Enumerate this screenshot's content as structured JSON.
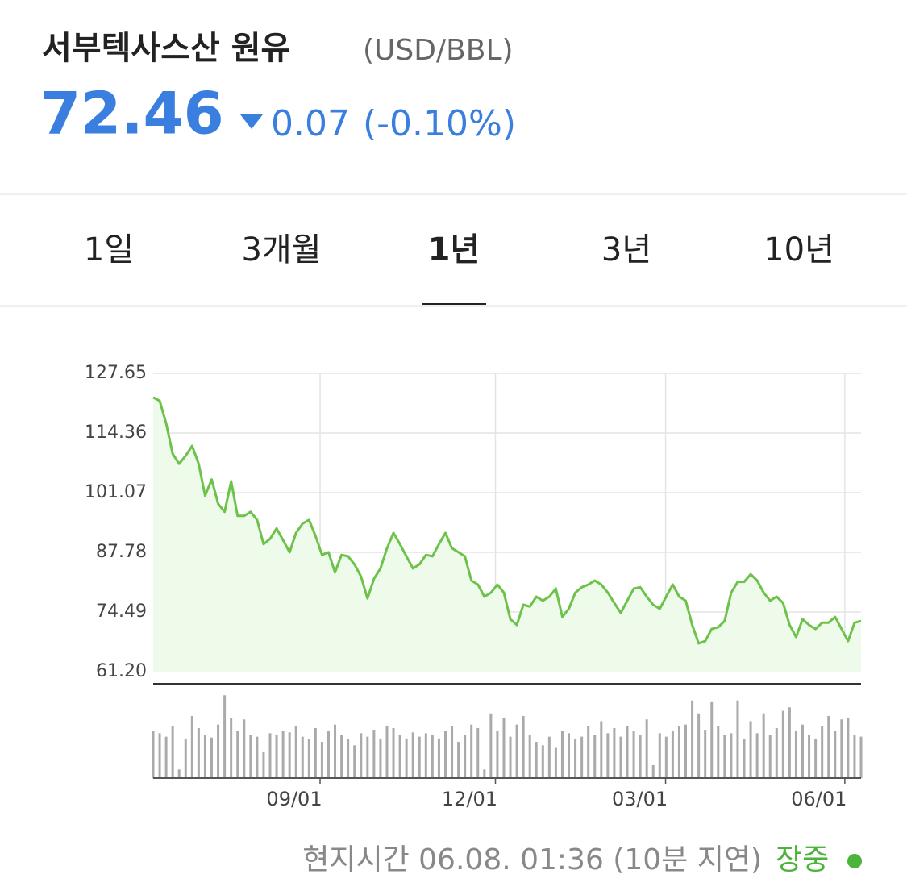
{
  "header": {
    "title": "서부텍사스산 원유",
    "unit": "(USD/BBL)",
    "price": "72.46",
    "change": "0.07",
    "change_pct": "(-0.10%)"
  },
  "tabs": {
    "items": [
      "1일",
      "3개월",
      "1년",
      "3년",
      "10년"
    ],
    "active": 2
  },
  "chart_data": {
    "type": "line",
    "color": "#6cc24a",
    "fill": "#effbea",
    "grid": true,
    "ylim": [
      61.2,
      127.65
    ],
    "yticks": [
      {
        "value": 61.2,
        "label": "61.20"
      },
      74.49,
      87.78,
      101.07,
      114.36,
      127.65
    ],
    "xlim": [
      0,
      109
    ],
    "xticks": [
      {
        "value": 25.7,
        "label": "09/01"
      },
      {
        "value": 52.7,
        "label": "12/01"
      },
      {
        "value": 78.9,
        "label": "03/01"
      },
      {
        "value": 106.5,
        "label": "06/01"
      }
    ],
    "series": [
      {
        "values": [
          122.3,
          121.5,
          116.5,
          109.7,
          107.5,
          109.3,
          111.5,
          107.5,
          100.4,
          104.0,
          98.6,
          96.8,
          103.6,
          95.9,
          95.9,
          96.8,
          95.0,
          89.6,
          90.8,
          93.1,
          90.5,
          87.8,
          92.1,
          94.2,
          95.0,
          91.4,
          87.2,
          87.8,
          83.3,
          87.2,
          86.9,
          85.1,
          82.4,
          77.5,
          81.9,
          84.2,
          88.7,
          92.1,
          89.6,
          86.9,
          84.2,
          85.1,
          87.2,
          86.9,
          89.6,
          92.1,
          88.7,
          87.8,
          86.9,
          81.5,
          80.6,
          77.9,
          78.8,
          80.6,
          78.8,
          72.9,
          71.6,
          76.1,
          75.7,
          77.9,
          77.0,
          77.9,
          79.7,
          73.4,
          75.2,
          78.8,
          80.0,
          80.6,
          81.5,
          80.6,
          78.8,
          76.5,
          74.3,
          77.0,
          79.7,
          80.0,
          77.9,
          76.1,
          75.2,
          77.9,
          80.6,
          77.9,
          77.0,
          71.6,
          67.5,
          68.0,
          70.7,
          71.1,
          72.5,
          78.8,
          81.2,
          81.2,
          82.9,
          81.5,
          78.8,
          77.0,
          77.9,
          76.5,
          71.6,
          68.9,
          72.9,
          71.6,
          70.7,
          72.1,
          72.1,
          73.4,
          70.7,
          68.0,
          72.1,
          72.5
        ]
      }
    ],
    "volume": {
      "color": "#aaaaaa",
      "ylim": [
        0,
        100
      ],
      "values": [
        55,
        52,
        48,
        60,
        10,
        45,
        72,
        58,
        50,
        47,
        62,
        96,
        70,
        55,
        68,
        50,
        48,
        30,
        52,
        50,
        55,
        53,
        60,
        48,
        45,
        58,
        42,
        55,
        62,
        50,
        45,
        38,
        52,
        48,
        56,
        45,
        60,
        58,
        50,
        46,
        53,
        48,
        52,
        50,
        46,
        55,
        60,
        42,
        50,
        62,
        58,
        10,
        75,
        55,
        70,
        48,
        62,
        72,
        50,
        42,
        38,
        48,
        35,
        55,
        52,
        45,
        48,
        60,
        50,
        66,
        52,
        58,
        48,
        60,
        55,
        50,
        68,
        15,
        52,
        48,
        55,
        60,
        62,
        90,
        75,
        56,
        88,
        60,
        50,
        52,
        90,
        45,
        66,
        52,
        75,
        50,
        58,
        78,
        82,
        55,
        62,
        50,
        45,
        60,
        72,
        55,
        68,
        70,
        50,
        48
      ]
    }
  },
  "footer": {
    "time": "현지시간 06.08. 01:36 (10분 지연)",
    "status": "장중"
  }
}
